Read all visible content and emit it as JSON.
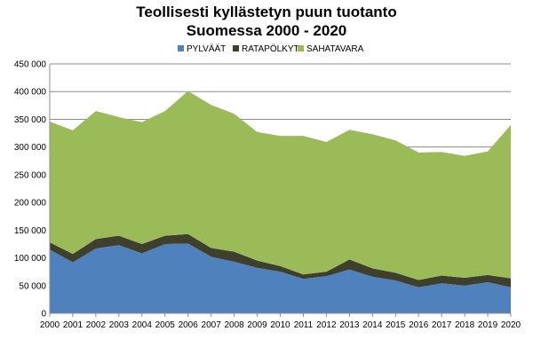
{
  "chart_data": {
    "type": "area",
    "title": [
      "Teollisesti kyllästetyn puun tuotanto",
      "Suomessa 2000 - 2020"
    ],
    "xlabel": "",
    "ylabel": "",
    "x": [
      2000,
      2001,
      2002,
      2003,
      2004,
      2005,
      2006,
      2007,
      2008,
      2009,
      2010,
      2011,
      2012,
      2013,
      2014,
      2015,
      2016,
      2017,
      2018,
      2019,
      2020
    ],
    "ylim": [
      0,
      450000
    ],
    "yticks": [
      0,
      50000,
      100000,
      150000,
      200000,
      250000,
      300000,
      350000,
      400000,
      450000
    ],
    "ytick_labels": [
      "0",
      "50 000",
      "100 000",
      "150 000",
      "200 000",
      "250 000",
      "300 000",
      "350 000",
      "400 000",
      "450 000"
    ],
    "stacked": true,
    "grid": "horizontal",
    "legend_position": "top",
    "series": [
      {
        "name": "PYLVÄÄT",
        "color": "#4f81bd",
        "values": [
          115000,
          92000,
          117000,
          123000,
          108000,
          125000,
          126000,
          102000,
          93000,
          82000,
          75000,
          62000,
          67000,
          79000,
          66000,
          59000,
          47000,
          54000,
          50000,
          56000,
          47000
        ]
      },
      {
        "name": "RATAPÖLKYT",
        "color": "#3f3f2e",
        "values": [
          13000,
          15000,
          17000,
          17000,
          17000,
          15000,
          17000,
          16000,
          18000,
          13000,
          10000,
          8000,
          8000,
          18000,
          15000,
          14000,
          13000,
          14000,
          14000,
          13000,
          16000
        ]
      },
      {
        "name": "SAHATAVARA",
        "color": "#9bbb59",
        "values": [
          218000,
          223000,
          231000,
          214000,
          220000,
          225000,
          258000,
          258000,
          249000,
          232000,
          235000,
          250000,
          234000,
          234000,
          242000,
          239000,
          230000,
          223000,
          220000,
          223000,
          277000
        ]
      }
    ]
  }
}
